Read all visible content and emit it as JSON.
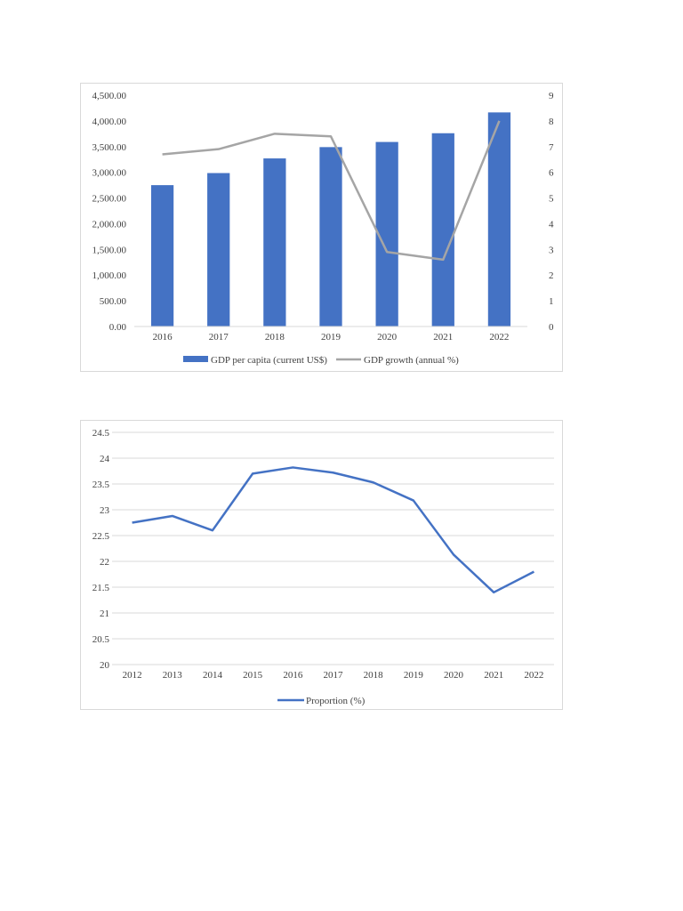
{
  "chart_data": [
    {
      "type": "bar",
      "categories": [
        "2016",
        "2017",
        "2018",
        "2019",
        "2020",
        "2021",
        "2022"
      ],
      "series": [
        {
          "name": "GDP per capita (current US$)",
          "type": "bar",
          "axis": "left",
          "color": "#4472c4",
          "values": [
            2750,
            2985,
            3270,
            3490,
            3590,
            3760,
            4165
          ]
        },
        {
          "name": "GDP growth (annual %)",
          "type": "line",
          "axis": "right",
          "color": "#a5a5a5",
          "values": [
            6.7,
            6.9,
            7.5,
            7.4,
            2.9,
            2.6,
            8.0
          ]
        }
      ],
      "y_left_ticks": [
        "0.00",
        "500.00",
        "1,000.00",
        "1,500.00",
        "2,000.00",
        "2,500.00",
        "3,000.00",
        "3,500.00",
        "4,000.00",
        "4,500.00"
      ],
      "y_right_ticks": [
        "0",
        "1",
        "2",
        "3",
        "4",
        "5",
        "6",
        "7",
        "8",
        "9"
      ],
      "ylim_left": [
        0,
        4500
      ],
      "ylim_right": [
        0,
        9
      ],
      "grid": false,
      "legend": "bottom"
    },
    {
      "type": "line",
      "categories": [
        "2012",
        "2013",
        "2014",
        "2015",
        "2016",
        "2017",
        "2018",
        "2019",
        "2020",
        "2021",
        "2022"
      ],
      "series": [
        {
          "name": "Proportion (%)",
          "color": "#4472c4",
          "values": [
            22.75,
            22.88,
            22.6,
            23.7,
            23.82,
            23.72,
            23.53,
            23.18,
            22.13,
            21.4,
            21.8
          ]
        }
      ],
      "y_ticks": [
        "20",
        "20.5",
        "21",
        "21.5",
        "22",
        "22.5",
        "23",
        "23.5",
        "24",
        "24.5"
      ],
      "ylim": [
        20,
        24.5
      ],
      "grid": true,
      "legend": "bottom"
    }
  ]
}
